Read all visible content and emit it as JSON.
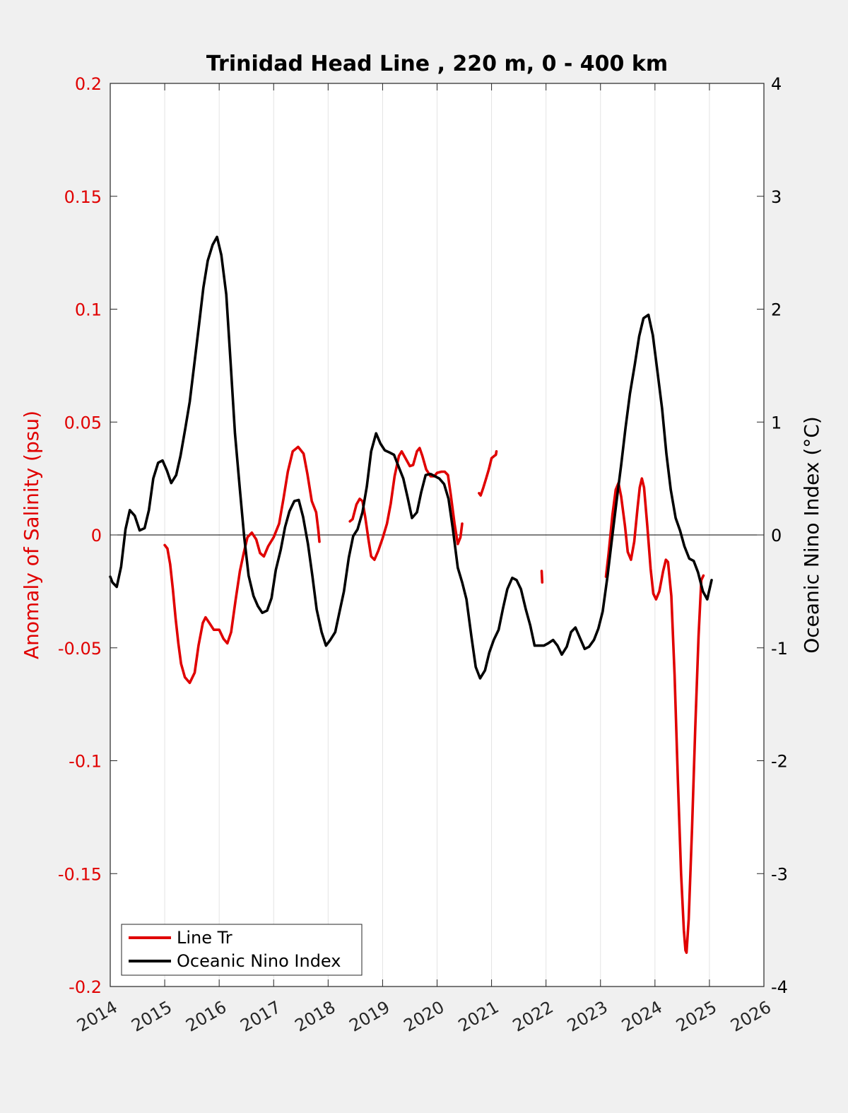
{
  "chart_data": {
    "type": "line",
    "title": "Trinidad Head Line , 220 m, 0 - 400 km",
    "ylabel": "Anomaly of Salinity (psu)",
    "y2label": "Oceanic Nino Index (°C)",
    "xlim": [
      2014,
      2026
    ],
    "ylim": [
      -0.2,
      0.2
    ],
    "y2lim": [
      -4,
      4
    ],
    "x_ticks": [
      "2014",
      "2015",
      "2016",
      "2017",
      "2018",
      "2019",
      "2020",
      "2021",
      "2022",
      "2023",
      "2024",
      "2025",
      "2026"
    ],
    "y_ticks": [
      "-0.2",
      "-0.15",
      "-0.1",
      "-0.05",
      "0",
      "0.05",
      "0.1",
      "0.15",
      "0.2"
    ],
    "y2_ticks": [
      "-4",
      "-3",
      "-2",
      "-1",
      "0",
      "1",
      "2",
      "3",
      "4"
    ],
    "grid": "vertical",
    "legend_position": "bottom-left",
    "colors": {
      "salinity": "#e00000",
      "oni": "#000000",
      "zero_line": "#000000"
    },
    "series": [
      {
        "name": "Line Tr",
        "axis": "left",
        "segments": [
          [
            [
              2015.0,
              -0.0045
            ],
            [
              2015.05,
              -0.006
            ],
            [
              2015.1,
              -0.013
            ],
            [
              2015.15,
              -0.024
            ],
            [
              2015.2,
              -0.037
            ],
            [
              2015.25,
              -0.048
            ],
            [
              2015.3,
              -0.057
            ],
            [
              2015.37,
              -0.063
            ],
            [
              2015.46,
              -0.0655
            ],
            [
              2015.55,
              -0.061
            ],
            [
              2015.62,
              -0.049
            ],
            [
              2015.7,
              -0.039
            ],
            [
              2015.75,
              -0.0365
            ],
            [
              2015.82,
              -0.039
            ],
            [
              2015.9,
              -0.042
            ],
            [
              2016.0,
              -0.042
            ],
            [
              2016.08,
              -0.046
            ],
            [
              2016.15,
              -0.048
            ],
            [
              2016.22,
              -0.043
            ],
            [
              2016.3,
              -0.029
            ],
            [
              2016.38,
              -0.016
            ],
            [
              2016.45,
              -0.008
            ],
            [
              2016.52,
              -0.001
            ],
            [
              2016.6,
              0.001
            ],
            [
              2016.68,
              -0.002
            ],
            [
              2016.75,
              -0.008
            ],
            [
              2016.82,
              -0.0095
            ],
            [
              2016.9,
              -0.005
            ],
            [
              2017.0,
              -0.001
            ],
            [
              2017.1,
              0.005
            ],
            [
              2017.18,
              0.016
            ],
            [
              2017.26,
              0.028
            ],
            [
              2017.35,
              0.037
            ],
            [
              2017.45,
              0.039
            ],
            [
              2017.55,
              0.036
            ],
            [
              2017.62,
              0.027
            ],
            [
              2017.7,
              0.015
            ],
            [
              2017.78,
              0.01
            ],
            [
              2017.82,
              0.002
            ],
            [
              2017.84,
              -0.003
            ]
          ],
          [
            [
              2018.4,
              0.006
            ],
            [
              2018.45,
              0.007
            ],
            [
              2018.52,
              0.0135
            ],
            [
              2018.58,
              0.016
            ],
            [
              2018.63,
              0.015
            ],
            [
              2018.68,
              0.008
            ],
            [
              2018.74,
              -0.002
            ],
            [
              2018.79,
              -0.0095
            ],
            [
              2018.85,
              -0.011
            ],
            [
              2018.92,
              -0.007
            ],
            [
              2019.0,
              -0.0015
            ],
            [
              2019.08,
              0.005
            ],
            [
              2019.15,
              0.014
            ],
            [
              2019.22,
              0.026
            ],
            [
              2019.3,
              0.035
            ],
            [
              2019.35,
              0.037
            ],
            [
              2019.42,
              0.034
            ],
            [
              2019.5,
              0.0305
            ],
            [
              2019.56,
              0.031
            ],
            [
              2019.63,
              0.037
            ],
            [
              2019.68,
              0.0385
            ],
            [
              2019.73,
              0.035
            ],
            [
              2019.8,
              0.029
            ],
            [
              2019.88,
              0.026
            ],
            [
              2019.95,
              0.026
            ],
            [
              2020.0,
              0.0275
            ],
            [
              2020.08,
              0.028
            ],
            [
              2020.14,
              0.028
            ],
            [
              2020.2,
              0.0265
            ],
            [
              2020.25,
              0.018
            ],
            [
              2020.32,
              0.005
            ],
            [
              2020.38,
              -0.004
            ],
            [
              2020.43,
              -0.001
            ],
            [
              2020.46,
              0.005
            ]
          ],
          [
            [
              2020.77,
              0.0185
            ],
            [
              2020.8,
              0.0175
            ],
            [
              2020.85,
              0.021
            ],
            [
              2020.9,
              0.025
            ],
            [
              2020.95,
              0.029
            ],
            [
              2021.0,
              0.034
            ],
            [
              2021.05,
              0.035
            ],
            [
              2021.08,
              0.0355
            ],
            [
              2021.09,
              0.037
            ]
          ],
          [
            [
              2021.92,
              -0.016
            ],
            [
              2021.93,
              -0.021
            ]
          ],
          [
            [
              2023.1,
              -0.0185
            ],
            [
              2023.15,
              -0.008
            ],
            [
              2023.22,
              0.009
            ],
            [
              2023.28,
              0.02
            ],
            [
              2023.33,
              0.023
            ],
            [
              2023.38,
              0.017
            ],
            [
              2023.45,
              0.004
            ],
            [
              2023.5,
              -0.0075
            ],
            [
              2023.56,
              -0.011
            ],
            [
              2023.62,
              -0.003
            ],
            [
              2023.68,
              0.012
            ],
            [
              2023.72,
              0.021
            ],
            [
              2023.76,
              0.025
            ],
            [
              2023.8,
              0.021
            ],
            [
              2023.86,
              0.004
            ],
            [
              2023.92,
              -0.015
            ],
            [
              2023.97,
              -0.026
            ],
            [
              2024.02,
              -0.0285
            ],
            [
              2024.08,
              -0.025
            ],
            [
              2024.15,
              -0.016
            ],
            [
              2024.2,
              -0.011
            ],
            [
              2024.24,
              -0.012
            ],
            [
              2024.3,
              -0.027
            ],
            [
              2024.36,
              -0.062
            ],
            [
              2024.42,
              -0.108
            ],
            [
              2024.48,
              -0.15
            ],
            [
              2024.53,
              -0.175
            ],
            [
              2024.56,
              -0.184
            ],
            [
              2024.58,
              -0.185
            ],
            [
              2024.62,
              -0.17
            ],
            [
              2024.68,
              -0.13
            ],
            [
              2024.74,
              -0.085
            ],
            [
              2024.8,
              -0.045
            ],
            [
              2024.85,
              -0.02
            ],
            [
              2024.89,
              -0.018
            ]
          ]
        ]
      },
      {
        "name": "Oceanic Nino Index",
        "axis": "right",
        "segments": [
          [
            [
              2014.0,
              -0.37
            ],
            [
              2014.04,
              -0.42
            ],
            [
              2014.12,
              -0.46
            ],
            [
              2014.2,
              -0.28
            ],
            [
              2014.28,
              0.05
            ],
            [
              2014.36,
              0.22
            ],
            [
              2014.45,
              0.17
            ],
            [
              2014.54,
              0.04
            ],
            [
              2014.63,
              0.06
            ],
            [
              2014.71,
              0.22
            ],
            [
              2014.79,
              0.5
            ],
            [
              2014.88,
              0.64
            ],
            [
              2014.96,
              0.66
            ],
            [
              2015.04,
              0.57
            ],
            [
              2015.12,
              0.46
            ],
            [
              2015.21,
              0.53
            ],
            [
              2015.29,
              0.7
            ],
            [
              2015.38,
              0.95
            ],
            [
              2015.46,
              1.18
            ],
            [
              2015.54,
              1.5
            ],
            [
              2015.63,
              1.86
            ],
            [
              2015.71,
              2.19
            ],
            [
              2015.79,
              2.43
            ],
            [
              2015.88,
              2.57
            ],
            [
              2015.96,
              2.64
            ],
            [
              2016.04,
              2.48
            ],
            [
              2016.13,
              2.13
            ],
            [
              2016.21,
              1.52
            ],
            [
              2016.29,
              0.9
            ],
            [
              2016.38,
              0.4
            ],
            [
              2016.46,
              -0.02
            ],
            [
              2016.54,
              -0.36
            ],
            [
              2016.63,
              -0.54
            ],
            [
              2016.71,
              -0.63
            ],
            [
              2016.79,
              -0.69
            ],
            [
              2016.88,
              -0.67
            ],
            [
              2016.96,
              -0.56
            ],
            [
              2017.04,
              -0.31
            ],
            [
              2017.13,
              -0.13
            ],
            [
              2017.21,
              0.07
            ],
            [
              2017.29,
              0.21
            ],
            [
              2017.38,
              0.3
            ],
            [
              2017.46,
              0.31
            ],
            [
              2017.54,
              0.16
            ],
            [
              2017.63,
              -0.08
            ],
            [
              2017.71,
              -0.36
            ],
            [
              2017.79,
              -0.66
            ],
            [
              2017.88,
              -0.86
            ],
            [
              2017.96,
              -0.98
            ],
            [
              2018.04,
              -0.93
            ],
            [
              2018.13,
              -0.86
            ],
            [
              2018.21,
              -0.68
            ],
            [
              2018.29,
              -0.5
            ],
            [
              2018.38,
              -0.2
            ],
            [
              2018.46,
              -0.01
            ],
            [
              2018.54,
              0.05
            ],
            [
              2018.63,
              0.2
            ],
            [
              2018.71,
              0.43
            ],
            [
              2018.79,
              0.74
            ],
            [
              2018.88,
              0.9
            ],
            [
              2018.96,
              0.81
            ],
            [
              2019.04,
              0.75
            ],
            [
              2019.13,
              0.73
            ],
            [
              2019.21,
              0.71
            ],
            [
              2019.29,
              0.61
            ],
            [
              2019.38,
              0.5
            ],
            [
              2019.46,
              0.33
            ],
            [
              2019.54,
              0.15
            ],
            [
              2019.63,
              0.2
            ],
            [
              2019.71,
              0.38
            ],
            [
              2019.79,
              0.53
            ],
            [
              2019.88,
              0.54
            ],
            [
              2019.96,
              0.52
            ],
            [
              2020.04,
              0.5
            ],
            [
              2020.13,
              0.45
            ],
            [
              2020.21,
              0.32
            ],
            [
              2020.29,
              0.05
            ],
            [
              2020.38,
              -0.29
            ],
            [
              2020.46,
              -0.42
            ],
            [
              2020.54,
              -0.57
            ],
            [
              2020.63,
              -0.9
            ],
            [
              2020.71,
              -1.17
            ],
            [
              2020.79,
              -1.27
            ],
            [
              2020.88,
              -1.2
            ],
            [
              2020.96,
              -1.04
            ],
            [
              2021.04,
              -0.93
            ],
            [
              2021.13,
              -0.84
            ],
            [
              2021.21,
              -0.65
            ],
            [
              2021.29,
              -0.48
            ],
            [
              2021.38,
              -0.38
            ],
            [
              2021.46,
              -0.4
            ],
            [
              2021.54,
              -0.48
            ],
            [
              2021.63,
              -0.66
            ],
            [
              2021.71,
              -0.8
            ],
            [
              2021.79,
              -0.98
            ],
            [
              2021.88,
              -0.98
            ],
            [
              2021.96,
              -0.98
            ],
            [
              2022.04,
              -0.96
            ],
            [
              2022.13,
              -0.93
            ],
            [
              2022.21,
              -0.98
            ],
            [
              2022.29,
              -1.06
            ],
            [
              2022.38,
              -0.99
            ],
            [
              2022.46,
              -0.86
            ],
            [
              2022.54,
              -0.82
            ],
            [
              2022.63,
              -0.92
            ],
            [
              2022.71,
              -1.01
            ],
            [
              2022.79,
              -0.99
            ],
            [
              2022.88,
              -0.93
            ],
            [
              2022.96,
              -0.83
            ],
            [
              2023.04,
              -0.68
            ],
            [
              2023.13,
              -0.36
            ],
            [
              2023.21,
              -0.04
            ],
            [
              2023.29,
              0.28
            ],
            [
              2023.38,
              0.62
            ],
            [
              2023.46,
              0.95
            ],
            [
              2023.54,
              1.25
            ],
            [
              2023.63,
              1.51
            ],
            [
              2023.71,
              1.76
            ],
            [
              2023.79,
              1.92
            ],
            [
              2023.88,
              1.95
            ],
            [
              2023.96,
              1.77
            ],
            [
              2024.04,
              1.47
            ],
            [
              2024.13,
              1.12
            ],
            [
              2024.21,
              0.72
            ],
            [
              2024.29,
              0.4
            ],
            [
              2024.38,
              0.15
            ],
            [
              2024.46,
              0.04
            ],
            [
              2024.54,
              -0.1
            ],
            [
              2024.63,
              -0.21
            ],
            [
              2024.71,
              -0.23
            ],
            [
              2024.79,
              -0.33
            ],
            [
              2024.88,
              -0.5
            ],
            [
              2024.96,
              -0.57
            ],
            [
              2025.04,
              -0.4
            ]
          ]
        ]
      }
    ]
  }
}
